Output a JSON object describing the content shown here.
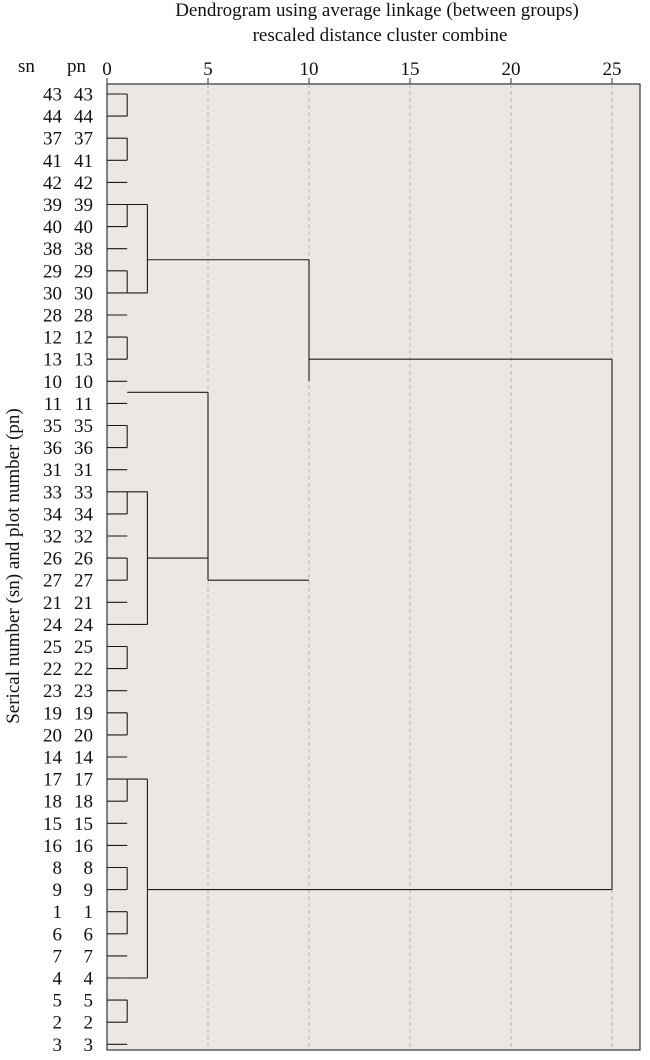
{
  "chart_data": {
    "type": "dendrogram",
    "title": "Dendrogram using average linkage (between groups)",
    "subtitle": "rescaled distance cluster combine",
    "ylabel": "Serical number (sn) and plot number (pn)",
    "column_headers": [
      "sn",
      "pn"
    ],
    "x_ticks": [
      0,
      5,
      10,
      15,
      20,
      25
    ],
    "xlim": [
      0,
      26
    ],
    "grid": true,
    "leaves": [
      {
        "sn": "43",
        "pn": "43"
      },
      {
        "sn": "44",
        "pn": "44"
      },
      {
        "sn": "37",
        "pn": "37"
      },
      {
        "sn": "41",
        "pn": "41"
      },
      {
        "sn": "42",
        "pn": "42"
      },
      {
        "sn": "39",
        "pn": "39"
      },
      {
        "sn": "40",
        "pn": "40"
      },
      {
        "sn": "38",
        "pn": "38"
      },
      {
        "sn": "29",
        "pn": "29"
      },
      {
        "sn": "30",
        "pn": "30"
      },
      {
        "sn": "28",
        "pn": "28"
      },
      {
        "sn": "12",
        "pn": "12"
      },
      {
        "sn": "13",
        "pn": "13"
      },
      {
        "sn": "10",
        "pn": "10"
      },
      {
        "sn": "11",
        "pn": "11"
      },
      {
        "sn": "35",
        "pn": "35"
      },
      {
        "sn": "36",
        "pn": "36"
      },
      {
        "sn": "31",
        "pn": "31"
      },
      {
        "sn": "33",
        "pn": "33"
      },
      {
        "sn": "34",
        "pn": "34"
      },
      {
        "sn": "32",
        "pn": "32"
      },
      {
        "sn": "26",
        "pn": "26"
      },
      {
        "sn": "27",
        "pn": "27"
      },
      {
        "sn": "21",
        "pn": "21"
      },
      {
        "sn": "24",
        "pn": "24"
      },
      {
        "sn": "25",
        "pn": "25"
      },
      {
        "sn": "22",
        "pn": "22"
      },
      {
        "sn": "23",
        "pn": "23"
      },
      {
        "sn": "19",
        "pn": "19"
      },
      {
        "sn": "20",
        "pn": "20"
      },
      {
        "sn": "14",
        "pn": "14"
      },
      {
        "sn": "17",
        "pn": "17"
      },
      {
        "sn": "18",
        "pn": "18"
      },
      {
        "sn": "15",
        "pn": "15"
      },
      {
        "sn": "16",
        "pn": "16"
      },
      {
        "sn": "8",
        "pn": "8"
      },
      {
        "sn": "9",
        "pn": "9"
      },
      {
        "sn": "1",
        "pn": "1"
      },
      {
        "sn": "6",
        "pn": "6"
      },
      {
        "sn": "7",
        "pn": "7"
      },
      {
        "sn": "4",
        "pn": "4"
      },
      {
        "sn": "5",
        "pn": "5"
      },
      {
        "sn": "2",
        "pn": "2"
      },
      {
        "sn": "3",
        "pn": "3"
      }
    ],
    "merges": [
      {
        "from": 0,
        "to": 10,
        "height": 1
      },
      {
        "from": 0,
        "to": 7,
        "height": 2
      },
      {
        "from": 11,
        "to": 14,
        "height": 1
      },
      {
        "from": 15,
        "to": 17,
        "height": 1
      },
      {
        "from": 18,
        "to": 27,
        "height": 2
      },
      {
        "from": 11,
        "to": 27,
        "height": 5
      },
      {
        "from": 0,
        "to": 27,
        "height": 10
      },
      {
        "from": 28,
        "to": 34,
        "height": 1
      },
      {
        "from": 35,
        "to": 43,
        "height": 1
      },
      {
        "from": 28,
        "to": 43,
        "height": 2
      },
      {
        "from": 0,
        "to": 43,
        "height": 25
      }
    ],
    "links": [
      {
        "y": [
          0,
          1
        ],
        "x": 1
      },
      {
        "y": [
          2,
          3
        ],
        "x": 1
      },
      {
        "y": [
          5,
          6
        ],
        "x": 1
      },
      {
        "y": [
          8,
          9
        ],
        "x": 1
      },
      {
        "y": [
          11,
          12
        ],
        "x": 1
      },
      {
        "y": [
          15,
          16
        ],
        "x": 1
      },
      {
        "y": [
          18,
          19
        ],
        "x": 1
      },
      {
        "y": [
          21,
          22
        ],
        "x": 1
      },
      {
        "y": [
          25,
          26
        ],
        "x": 1
      },
      {
        "y": [
          28,
          29
        ],
        "x": 1
      },
      {
        "y": [
          31,
          32
        ],
        "x": 1
      },
      {
        "y": [
          35,
          36
        ],
        "x": 1
      },
      {
        "y": [
          37,
          38
        ],
        "x": 1
      },
      {
        "y": [
          41,
          42
        ],
        "x": 1
      },
      {
        "y": [
          5,
          9
        ],
        "x": 2
      },
      {
        "y": [
          18,
          24
        ],
        "x": 2
      },
      {
        "y": [
          31,
          40
        ],
        "x": 2
      },
      {
        "y": [
          7.5,
          13
        ],
        "x": 10
      },
      {
        "y": [
          13.5,
          22
        ],
        "x": 5
      },
      {
        "y": [
          12,
          36
        ],
        "x": 25
      }
    ],
    "colors": {
      "plot_background": "#ede7e4",
      "frame": "#333333",
      "grid": "#b9b2ae",
      "links": "#1a1a1a",
      "text": "#111111"
    }
  }
}
